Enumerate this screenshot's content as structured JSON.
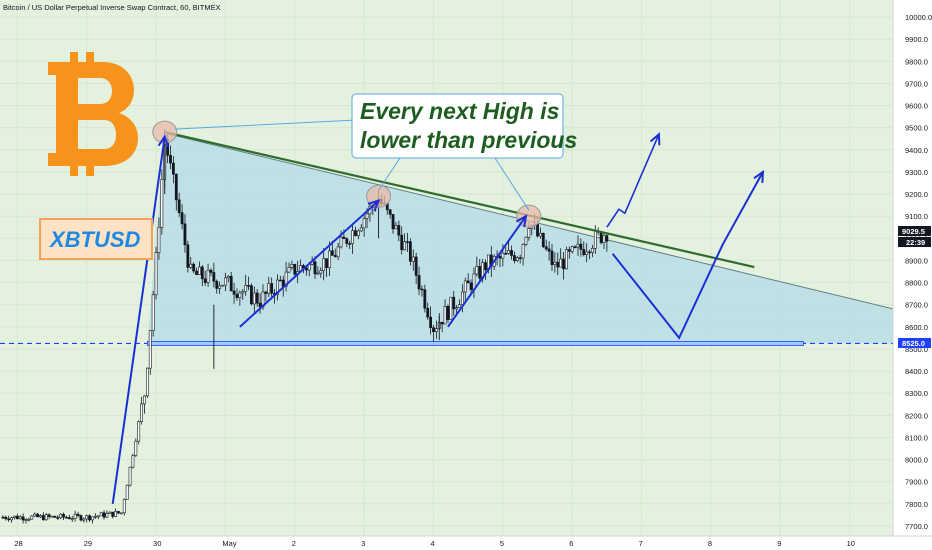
{
  "header": {
    "title": "Bitcoin / US Dollar Perpetual Inverse Swap Contract, 60, BITMEX"
  },
  "colors": {
    "background": "#e3f1de",
    "triangle_fill": "#b9dde6",
    "resistance_line": "#2e6b2e",
    "support_line": "#1e40ff",
    "arrows": "#1a2fd6",
    "callout_text": "#1d5e20",
    "bitcoin_orange": "#f7931a",
    "xbtusd_text": "#1e88e5",
    "candle": "#131722"
  },
  "callout": {
    "line1": "Every next High is",
    "line2": "lower than previous"
  },
  "badge": {
    "label": "XBTUSD",
    "icon": "bitcoin-logo-icon"
  },
  "price_axis": {
    "ticks": [
      "10000.0",
      "9900.0",
      "9800.0",
      "9700.0",
      "9600.0",
      "9500.0",
      "9400.0",
      "9300.0",
      "9200.0",
      "9100.0",
      "9000.0",
      "8900.0",
      "8800.0",
      "8700.0",
      "8600.0",
      "8500.0",
      "8400.0",
      "8300.0",
      "8200.0",
      "8100.0",
      "8000.0",
      "7900.0",
      "7800.0",
      "7700.0"
    ],
    "last_price": "9029.5",
    "countdown": "22:39",
    "support_price": "8525.0"
  },
  "time_axis": {
    "ticks": [
      "28",
      "29",
      "30",
      "May",
      "2",
      "3",
      "4",
      "5",
      "6",
      "7",
      "8",
      "9",
      "10"
    ]
  },
  "chart_data": {
    "type": "candlestick",
    "title": "Bitcoin / US Dollar Perpetual Inverse Swap Contract, 60, BITMEX",
    "ylim": [
      7680,
      10050
    ],
    "x_start": "2020-04-27 18:00",
    "x_end": "2020-05-10 15:00",
    "support_level": 8525.0,
    "last_price": 9029.5,
    "swing_highs": [
      {
        "date": "2020-04-30 03:00",
        "price": 9480
      },
      {
        "date": "2020-05-03 05:00",
        "price": 9190
      },
      {
        "date": "2020-05-05 09:00",
        "price": 9100
      }
    ],
    "resistance_line": [
      {
        "date": "2020-04-30 03:00",
        "price": 9480
      },
      {
        "date": "2020-05-08 15:00",
        "price": 8870
      }
    ],
    "series": [
      {
        "x": [
          "2020-04-28 00:00",
          "2020-04-29 00:00",
          "2020-04-29 12:00",
          "2020-04-29 20:00",
          "2020-04-30 00:00",
          "2020-04-30 03:00",
          "2020-04-30 12:00",
          "2020-05-01 00:00",
          "2020-05-01 12:00",
          "2020-05-02 00:00",
          "2020-05-02 12:00",
          "2020-05-03 05:00",
          "2020-05-03 16:00",
          "2020-05-04 00:00",
          "2020-05-04 08:00",
          "2020-05-04 18:00",
          "2020-05-05 06:00",
          "2020-05-05 09:00",
          "2020-05-05 18:00",
          "2020-05-06 06:00",
          "2020-05-06 12:00"
        ],
        "values": [
          7740,
          7740,
          7760,
          8300,
          8900,
          9450,
          8840,
          8800,
          8720,
          8860,
          8900,
          9180,
          8920,
          8600,
          8720,
          8880,
          8940,
          9080,
          8870,
          8980,
          9030
        ]
      }
    ],
    "projection": [
      {
        "date": "2020-05-06 14:00",
        "price": 8930
      },
      {
        "date": "2020-05-07 13:00",
        "price": 8550
      },
      {
        "date": "2020-05-08 04:00",
        "price": 8970
      },
      {
        "date": "2020-05-08 18:00",
        "price": 9300
      }
    ],
    "breakout_arrow": [
      {
        "date": "2020-05-06 12:00",
        "price": 9050
      },
      {
        "date": "2020-05-07 06:00",
        "price": 9470
      }
    ]
  }
}
